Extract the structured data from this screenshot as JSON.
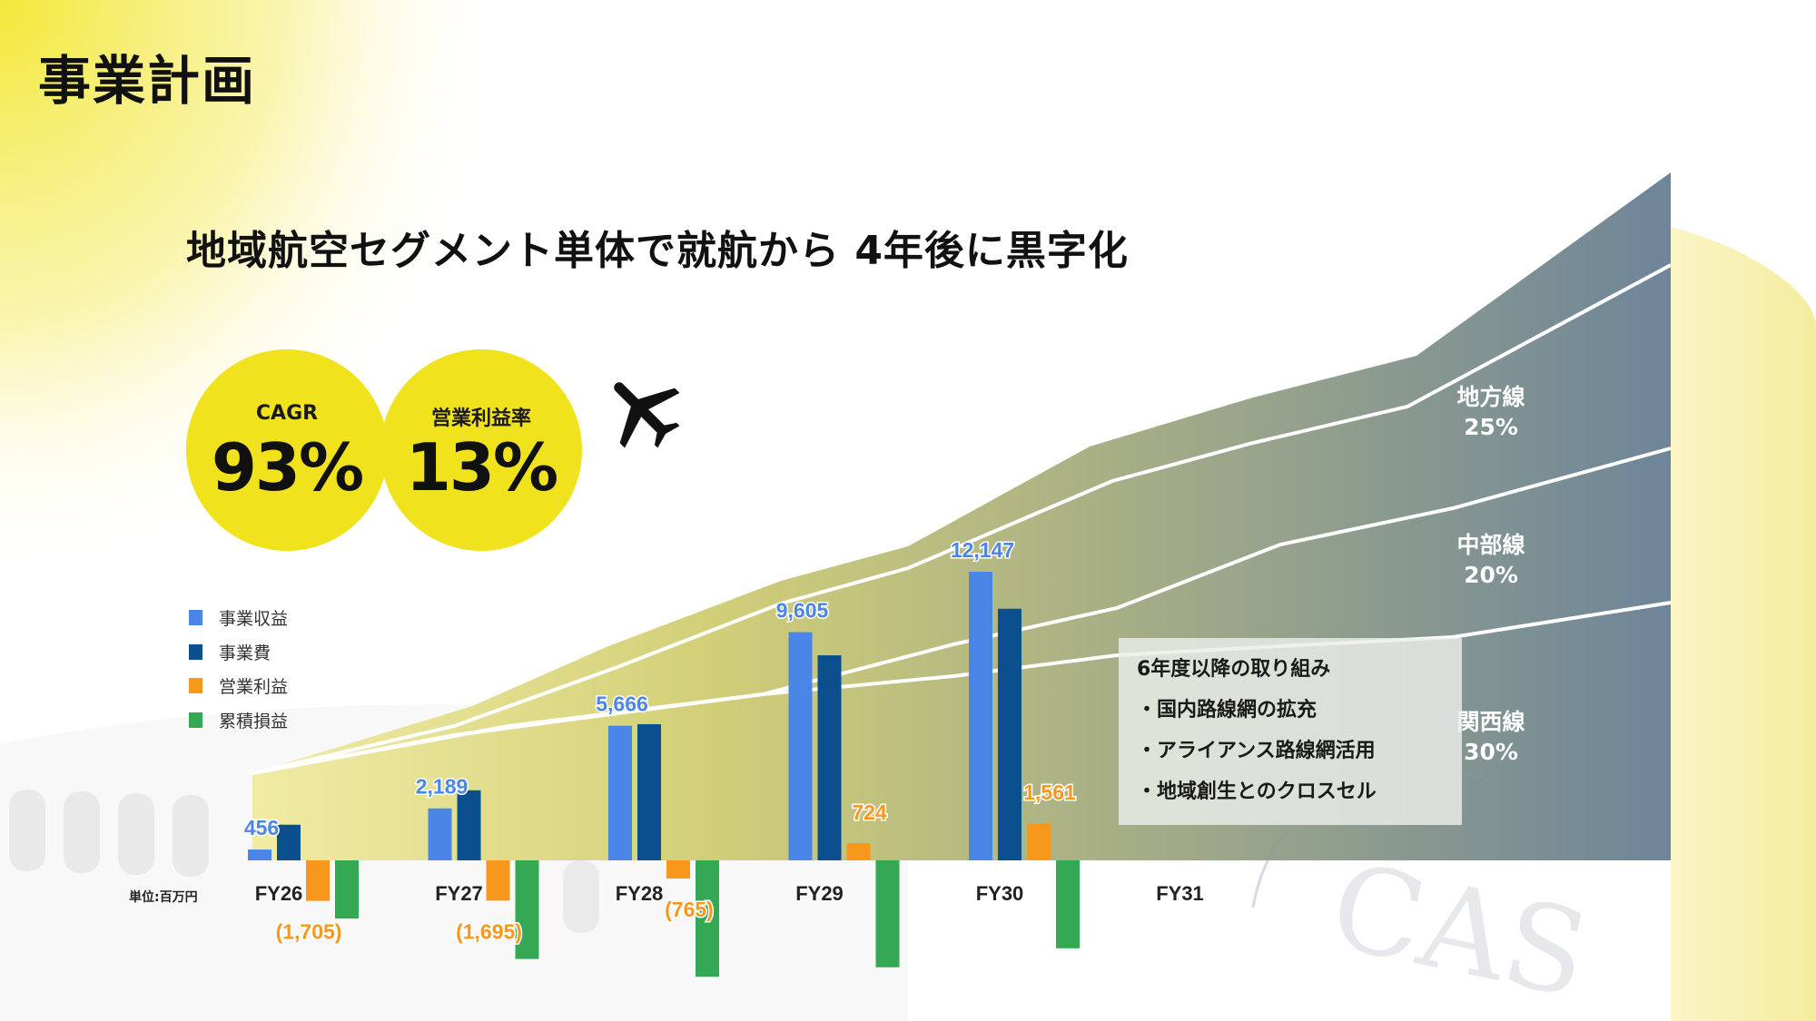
{
  "page_title": "事業計画",
  "headline": "地域航空セグメント単体で就航から 4年後に黒字化",
  "kpis": [
    {
      "label": "CAGR",
      "value": "93%"
    },
    {
      "label": "営業利益率",
      "value": "13%"
    }
  ],
  "unit_label": "単位:百万円",
  "segments": [
    {
      "name": "地方線",
      "share": "25%"
    },
    {
      "name": "中部線",
      "share": "20%"
    },
    {
      "name": "関西線",
      "share": "30%"
    }
  ],
  "initiatives": {
    "title": "6年度以降の取り組み",
    "items": [
      "・国内路線網の拡充",
      "・アライアンス路線網活用",
      "・地域創生とのクロスセル"
    ]
  },
  "icons": {
    "plane": "airplane-icon"
  },
  "colors": {
    "accent_yellow": "#f0e21c",
    "revenue": "#4a86e8",
    "expense": "#0b4f8e",
    "operating_profit": "#f7981d",
    "cumulative": "#34a853",
    "area_dark": "#6e8599"
  },
  "chart_data": {
    "type": "bar",
    "categories": [
      "FY26",
      "FY27",
      "FY28",
      "FY29",
      "FY30",
      "FY31"
    ],
    "legend": [
      "事業収益",
      "事業費",
      "営業利益",
      "累積損益"
    ],
    "legend_position": "left",
    "series": [
      {
        "name": "事業収益",
        "values": [
          456,
          2189,
          5666,
          9605,
          12147,
          null
        ]
      },
      {
        "name": "事業費",
        "values": [
          1500,
          2950,
          5730,
          8630,
          10590,
          null
        ]
      },
      {
        "name": "営業利益",
        "values": [
          -1705,
          -1695,
          -765,
          724,
          1561,
          null
        ]
      },
      {
        "name": "累積損益",
        "values": [
          -2450,
          -4150,
          -4900,
          -4500,
          -3700,
          null
        ]
      }
    ],
    "data_labels": {
      "事業収益": [
        "456",
        "2,189",
        "5,666",
        "9,605",
        "12,147",
        ""
      ],
      "営業利益": [
        "(1,705)",
        "(1,695)",
        "(765)",
        "724",
        "1,561",
        ""
      ]
    },
    "ylim": [
      -5400,
      12147
    ],
    "grid": false,
    "xlabel": "",
    "ylabel": ""
  }
}
